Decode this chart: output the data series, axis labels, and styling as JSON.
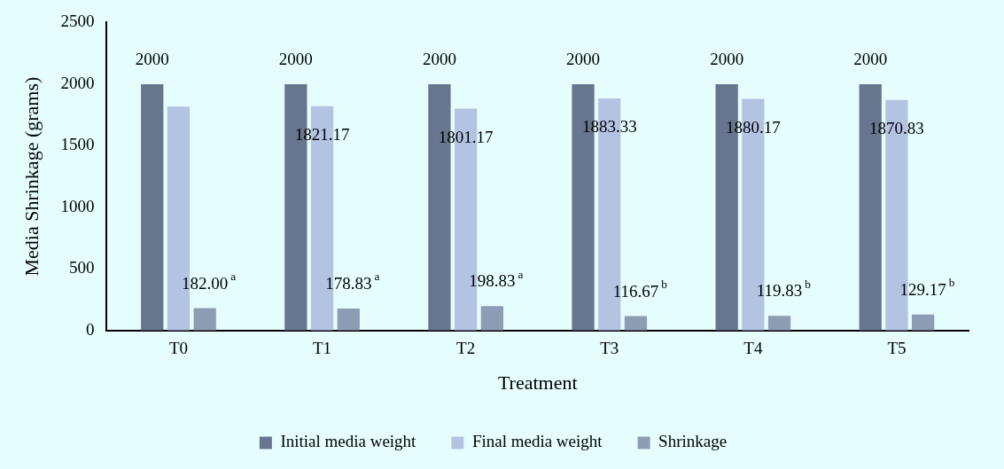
{
  "chart_data": {
    "type": "bar",
    "xlabel": "Treatment",
    "ylabel": "Media Shrinkage (grams)",
    "categories": [
      "T0",
      "T1",
      "T2",
      "T3",
      "T4",
      "T5"
    ],
    "series": [
      {
        "name": "Initial media weight",
        "color": "#67758f",
        "values": [
          2000,
          2000,
          2000,
          2000,
          2000,
          2000
        ],
        "value_labels": [
          "2000",
          "2000",
          "2000",
          "2000",
          "2000",
          "2000"
        ]
      },
      {
        "name": "Final media weight",
        "color": "#b3c4e2",
        "values": [
          1818,
          1821.17,
          1801.17,
          1883.33,
          1880.17,
          1870.83
        ],
        "value_labels": [
          null,
          "1821.17",
          "1801.17",
          "1883.33",
          "1880.17",
          "1870.83"
        ]
      },
      {
        "name": "Shrinkage",
        "color": "#8e9cb4",
        "values": [
          182.0,
          178.83,
          198.83,
          116.67,
          119.83,
          129.17
        ],
        "value_labels": [
          "182.00$^{a}$",
          "178.83$^{a}$",
          "198.83$^{a}$",
          "116.67$^{b}$",
          "119.83$^{b}$",
          "129.17$^{b}$"
        ]
      }
    ],
    "ylim": [
      0,
      2500
    ],
    "yticks": [
      0,
      500,
      1000,
      1500,
      2000,
      2500
    ],
    "grid": false,
    "legend": "bottom"
  }
}
